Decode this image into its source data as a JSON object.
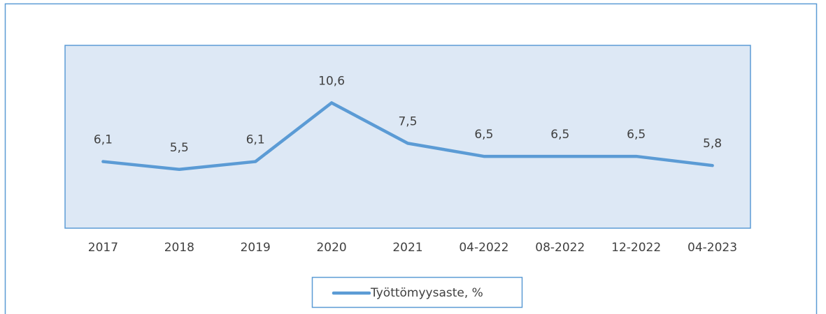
{
  "chart_data": {
    "type": "line",
    "categories": [
      "2017",
      "2018",
      "2019",
      "2020",
      "2021",
      "04-2022",
      "08-2022",
      "12-2022",
      "04-2023"
    ],
    "series": [
      {
        "name": "Työttömyysaste, %",
        "color": "#5b9bd5",
        "values": [
          6.1,
          5.5,
          6.1,
          10.6,
          7.5,
          6.5,
          6.5,
          6.5,
          5.8
        ],
        "value_labels": [
          "6,1",
          "5,5",
          "6,1",
          "10,6",
          "7,5",
          "6,5",
          "6,5",
          "6,5",
          "5,8"
        ]
      }
    ],
    "ylim": [
      1,
      15
    ],
    "legend": "bottom"
  }
}
